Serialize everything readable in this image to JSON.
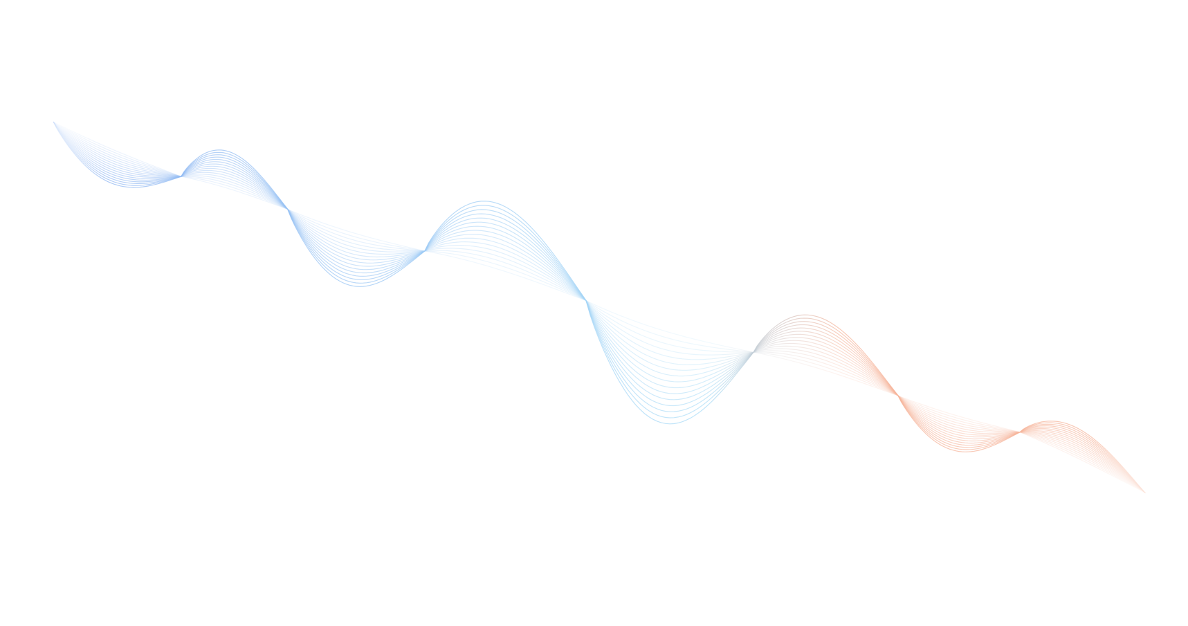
{
  "background_color": "#ffffff",
  "wave": {
    "line_count": 16,
    "colors": {
      "start": "#8fb6f2",
      "middle": "#a9dcf7",
      "end": "#f6b49a"
    }
  }
}
